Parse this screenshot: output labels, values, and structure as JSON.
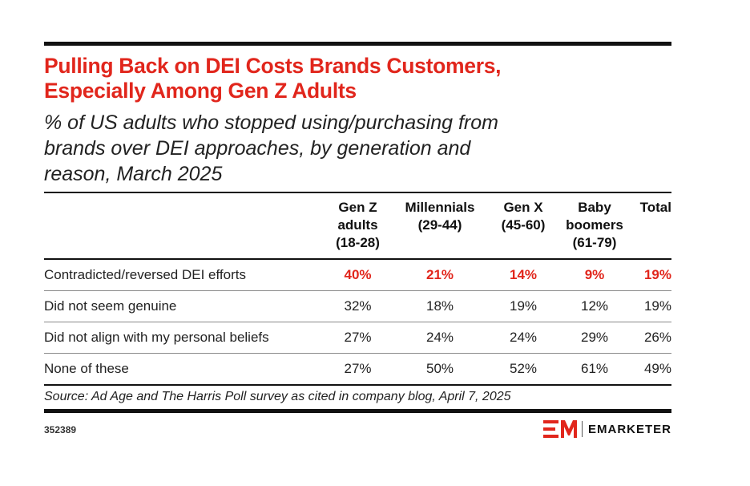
{
  "title_line1": "Pulling Back on DEI Costs Brands Customers,",
  "title_line2": "Especially Among Gen Z Adults",
  "subtitle_line1": "% of US adults who stopped using/purchasing from",
  "subtitle_line2": "brands over DEI approaches, by generation and",
  "subtitle_line3": "reason, March 2025",
  "colors": {
    "accent": "#e1261c",
    "rule": "#111111"
  },
  "chart_data": {
    "type": "table",
    "columns": [
      [
        "Gen Z",
        "adults",
        "(18-28)"
      ],
      [
        "Millennials",
        "(29-44)"
      ],
      [
        "Gen X",
        "(45-60)"
      ],
      [
        "Baby",
        "boomers",
        "(61-79)"
      ],
      [
        "Total"
      ]
    ],
    "rows": [
      {
        "label": "Contradicted/reversed DEI efforts",
        "values": [
          "40%",
          "21%",
          "14%",
          "9%",
          "19%"
        ],
        "highlight": true
      },
      {
        "label": "Did not seem genuine",
        "values": [
          "32%",
          "18%",
          "19%",
          "12%",
          "19%"
        ]
      },
      {
        "label": "Did not align with my personal beliefs",
        "values": [
          "27%",
          "24%",
          "24%",
          "29%",
          "26%"
        ]
      },
      {
        "label": "None of these",
        "values": [
          "27%",
          "50%",
          "52%",
          "61%",
          "49%"
        ]
      }
    ]
  },
  "source": "Source: Ad Age and The Harris Poll survey as cited in company blog, April 7, 2025",
  "chart_id": "352389",
  "brand": {
    "name": "EMARKETER",
    "logo_icon": "em-logo-icon"
  }
}
